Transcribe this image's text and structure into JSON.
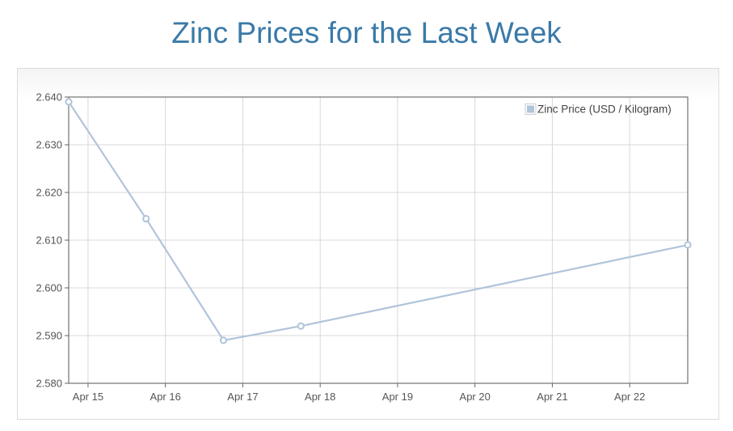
{
  "page": {
    "title": "Zinc Prices for the Last Week"
  },
  "chart_data": {
    "type": "line",
    "title": "",
    "xlabel": "",
    "ylabel": "",
    "x_ticks": [
      "Apr 15",
      "Apr 16",
      "Apr 17",
      "Apr 18",
      "Apr 19",
      "Apr 20",
      "Apr 21",
      "Apr 22"
    ],
    "y_ticks": [
      "2.580",
      "2.590",
      "2.600",
      "2.610",
      "2.620",
      "2.630",
      "2.640"
    ],
    "ylim": [
      2.58,
      2.64
    ],
    "xlim": [
      "Apr 14, 18:00",
      "Apr 22, 18:00"
    ],
    "grid": true,
    "legend_position": "top-right",
    "series": [
      {
        "name": "Zinc Price (USD / Kilogram)",
        "color": "#b0c4da",
        "points": [
          {
            "x": "Apr 14, 18:00",
            "y": 2.639
          },
          {
            "x": "Apr 15, 18:00",
            "y": 2.6145
          },
          {
            "x": "Apr 16, 18:00",
            "y": 2.589
          },
          {
            "x": "Apr 17, 18:00",
            "y": 2.592
          },
          {
            "x": "Apr 22, 18:00",
            "y": 2.609
          }
        ]
      }
    ]
  }
}
